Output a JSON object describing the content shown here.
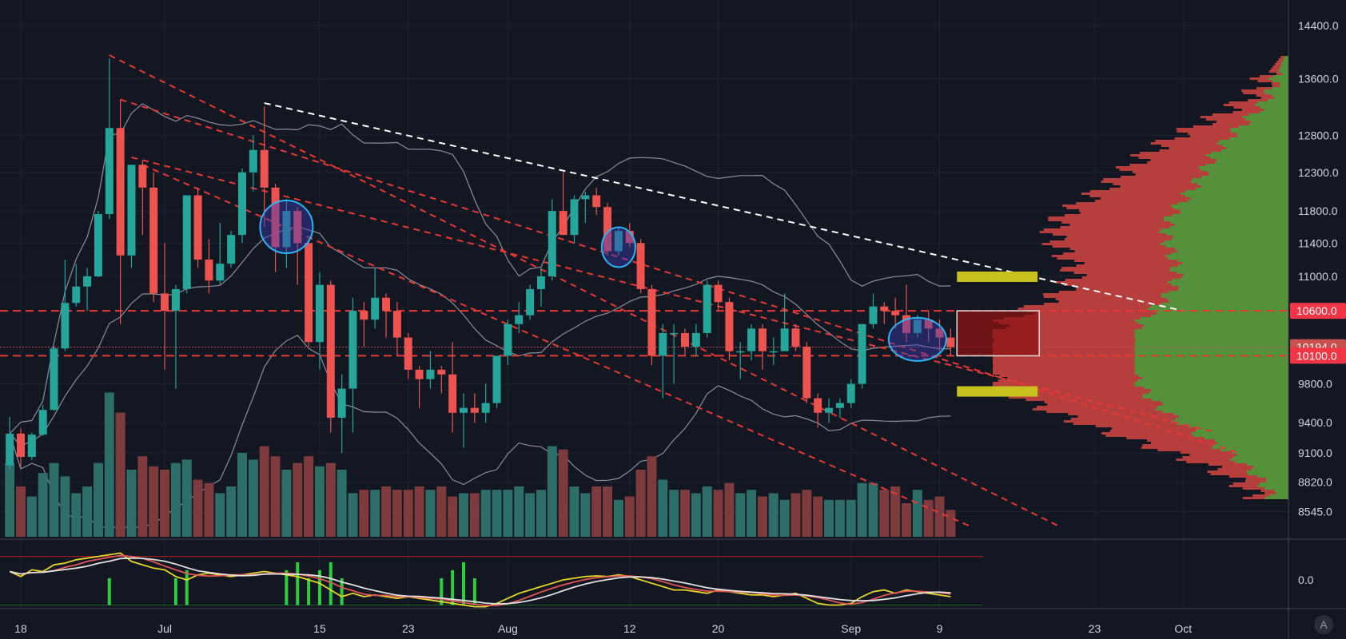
{
  "chart_data": {
    "type": "candlestick",
    "price_axis": {
      "scale": "log",
      "range": [
        8330,
        14700
      ],
      "ticks": [
        "14400.0",
        "13600.0",
        "12800.0",
        "12300.0",
        "11800.0",
        "11400.0",
        "11000.0",
        "9800.0",
        "9400.0",
        "9100.0",
        "8820.0",
        "8545.0"
      ]
    },
    "time_axis": {
      "ticks": [
        {
          "label": "18",
          "date": "2019-06-18"
        },
        {
          "label": "Jul",
          "date": "2019-07-01"
        },
        {
          "label": "15",
          "date": "2019-07-15"
        },
        {
          "label": "23",
          "date": "2019-07-23"
        },
        {
          "label": "Aug",
          "date": "2019-08-01"
        },
        {
          "label": "12",
          "date": "2019-08-12"
        },
        {
          "label": "20",
          "date": "2019-08-20"
        },
        {
          "label": "Sep",
          "date": "2019-09-01"
        },
        {
          "label": "9",
          "date": "2019-09-09"
        },
        {
          "label": "23",
          "date": "2019-09-23"
        },
        {
          "label": "Oct",
          "date": "2019-10-01"
        }
      ]
    },
    "price_badges": [
      {
        "label": "10600.0",
        "price": 10600,
        "color": "#f23645"
      },
      {
        "label": "10194.0",
        "price": 10194,
        "color": "#c8504f"
      },
      {
        "label": "10100.0",
        "price": 10100,
        "color": "#f23645"
      }
    ],
    "oscillator": {
      "tick_label": "0.0"
    },
    "series": [
      {
        "name": "candles",
        "ohlc": [
          [
            "2019-06-17",
            8980,
            9460,
            8940,
            9290
          ],
          [
            "2019-06-18",
            9290,
            9340,
            8960,
            9060
          ],
          [
            "2019-06-19",
            9060,
            9300,
            9030,
            9280
          ],
          [
            "2019-06-20",
            9280,
            9580,
            9270,
            9530
          ],
          [
            "2019-06-21",
            9530,
            10200,
            9520,
            10180
          ],
          [
            "2019-06-22",
            10180,
            11200,
            10150,
            10690
          ],
          [
            "2019-06-23",
            10690,
            11150,
            10650,
            10880
          ],
          [
            "2019-06-24",
            10880,
            11100,
            10600,
            11000
          ],
          [
            "2019-06-25",
            11000,
            11800,
            10990,
            11760
          ],
          [
            "2019-06-26",
            11760,
            13900,
            11700,
            12900
          ],
          [
            "2019-06-27",
            12900,
            13300,
            10450,
            11250
          ],
          [
            "2019-06-28",
            11250,
            12400,
            11100,
            12400
          ],
          [
            "2019-06-29",
            12400,
            12450,
            11500,
            12100
          ],
          [
            "2019-06-30",
            12100,
            12300,
            10700,
            10800
          ],
          [
            "2019-07-01",
            10800,
            11400,
            9950,
            10600
          ],
          [
            "2019-07-02",
            10600,
            10900,
            9750,
            10850
          ],
          [
            "2019-07-03",
            10850,
            12000,
            10800,
            12000
          ],
          [
            "2019-07-04",
            12000,
            12100,
            11100,
            11200
          ],
          [
            "2019-07-05",
            11200,
            11450,
            10800,
            10950
          ],
          [
            "2019-07-06",
            10950,
            11650,
            10900,
            11150
          ],
          [
            "2019-07-07",
            11150,
            11550,
            11100,
            11500
          ],
          [
            "2019-07-08",
            11500,
            12350,
            11400,
            12300
          ],
          [
            "2019-07-09",
            12300,
            12800,
            12050,
            12600
          ],
          [
            "2019-07-10",
            12600,
            13200,
            11600,
            12100
          ],
          [
            "2019-07-11",
            12100,
            12150,
            11050,
            11350
          ],
          [
            "2019-07-12",
            11350,
            11950,
            11100,
            11800
          ],
          [
            "2019-07-13",
            11800,
            11850,
            10900,
            11400
          ],
          [
            "2019-07-14",
            11400,
            11450,
            10200,
            10250
          ],
          [
            "2019-07-15",
            10250,
            11050,
            9950,
            10900
          ],
          [
            "2019-07-16",
            10900,
            10950,
            9300,
            9450
          ],
          [
            "2019-07-17",
            9450,
            9900,
            9100,
            9750
          ],
          [
            "2019-07-18",
            9750,
            10750,
            9300,
            10600
          ],
          [
            "2019-07-19",
            10600,
            10700,
            10200,
            10500
          ],
          [
            "2019-07-20",
            10500,
            11100,
            10400,
            10750
          ],
          [
            "2019-07-21",
            10750,
            10800,
            10300,
            10600
          ],
          [
            "2019-07-22",
            10600,
            10700,
            10100,
            10300
          ],
          [
            "2019-07-23",
            10300,
            10350,
            9850,
            9950
          ],
          [
            "2019-07-24",
            9950,
            9990,
            9550,
            9850
          ],
          [
            "2019-07-25",
            9850,
            10150,
            9750,
            9950
          ],
          [
            "2019-07-26",
            9950,
            9990,
            9700,
            9900
          ],
          [
            "2019-07-27",
            9900,
            10250,
            9300,
            9500
          ],
          [
            "2019-07-28",
            9500,
            9700,
            9150,
            9550
          ],
          [
            "2019-07-29",
            9550,
            9700,
            9400,
            9500
          ],
          [
            "2019-07-30",
            9500,
            9800,
            9400,
            9600
          ],
          [
            "2019-07-31",
            9600,
            10100,
            9550,
            10100
          ],
          [
            "2019-08-01",
            10100,
            10500,
            10000,
            10450
          ],
          [
            "2019-08-02",
            10450,
            10700,
            10350,
            10550
          ],
          [
            "2019-08-03",
            10550,
            10900,
            10500,
            10850
          ],
          [
            "2019-08-04",
            10850,
            11100,
            10650,
            11000
          ],
          [
            "2019-08-05",
            11000,
            11950,
            10950,
            11800
          ],
          [
            "2019-08-06",
            11800,
            12300,
            11500,
            11500
          ],
          [
            "2019-08-07",
            11500,
            12000,
            11400,
            11950
          ],
          [
            "2019-08-08",
            11950,
            12050,
            11650,
            12000
          ],
          [
            "2019-08-09",
            12000,
            12100,
            11750,
            11850
          ],
          [
            "2019-08-10",
            11850,
            11900,
            11250,
            11300
          ],
          [
            "2019-08-11",
            11300,
            11600,
            11250,
            11550
          ],
          [
            "2019-08-12",
            11550,
            11650,
            11350,
            11400
          ],
          [
            "2019-08-13",
            11400,
            11450,
            10800,
            10850
          ],
          [
            "2019-08-14",
            10850,
            10900,
            10000,
            10100
          ],
          [
            "2019-08-15",
            10100,
            10450,
            9650,
            10350
          ],
          [
            "2019-08-16",
            10350,
            10450,
            9800,
            10350
          ],
          [
            "2019-08-17",
            10350,
            10400,
            10100,
            10200
          ],
          [
            "2019-08-18",
            10200,
            10450,
            10100,
            10350
          ],
          [
            "2019-08-19",
            10350,
            10950,
            10300,
            10900
          ],
          [
            "2019-08-20",
            10900,
            10950,
            10600,
            10700
          ],
          [
            "2019-08-21",
            10700,
            10750,
            10050,
            10150
          ],
          [
            "2019-08-22",
            10150,
            10250,
            9850,
            10150
          ],
          [
            "2019-08-23",
            10150,
            10450,
            10050,
            10400
          ],
          [
            "2019-08-24",
            10400,
            10450,
            9950,
            10150
          ],
          [
            "2019-08-25",
            10150,
            10300,
            10000,
            10150
          ],
          [
            "2019-08-26",
            10150,
            10800,
            10150,
            10400
          ],
          [
            "2019-08-27",
            10400,
            10450,
            10150,
            10200
          ],
          [
            "2019-08-28",
            10200,
            10250,
            9600,
            9650
          ],
          [
            "2019-08-29",
            9650,
            9700,
            9350,
            9500
          ],
          [
            "2019-08-30",
            9500,
            9650,
            9400,
            9550
          ],
          [
            "2019-08-31",
            9550,
            9650,
            9450,
            9600
          ],
          [
            "2019-09-01",
            9600,
            9850,
            9550,
            9800
          ],
          [
            "2019-09-02",
            9800,
            10450,
            9750,
            10450
          ],
          [
            "2019-09-03",
            10450,
            10800,
            10400,
            10650
          ],
          [
            "2019-09-04",
            10650,
            10700,
            10450,
            10600
          ],
          [
            "2019-09-05",
            10600,
            10750,
            10400,
            10550
          ],
          [
            "2019-09-06",
            10550,
            10900,
            10250,
            10350
          ],
          [
            "2019-09-07",
            10350,
            10550,
            10300,
            10500
          ],
          [
            "2019-09-08",
            10500,
            10600,
            10250,
            10400
          ],
          [
            "2019-09-09",
            10400,
            10500,
            10150,
            10300
          ],
          [
            "2019-09-10",
            10300,
            10400,
            10100,
            10194
          ]
        ]
      },
      {
        "name": "volume",
        "values": [
          22,
          15,
          12,
          19,
          22,
          18,
          13,
          15,
          22,
          43,
          37,
          20,
          24,
          21,
          20,
          22,
          23,
          17,
          16,
          13,
          15,
          25,
          23,
          27,
          24,
          20,
          22,
          24,
          21,
          22,
          20,
          13,
          14,
          14,
          15,
          14,
          14,
          15,
          14,
          15,
          12,
          13,
          13,
          14,
          14,
          14,
          15,
          13,
          14,
          27,
          26,
          15,
          13,
          15,
          15,
          11,
          12,
          20,
          24,
          17,
          14,
          14,
          13,
          15,
          14,
          16,
          13,
          14,
          12,
          13,
          11,
          13,
          14,
          12,
          11,
          11,
          11,
          16,
          16,
          14,
          15,
          10,
          14,
          11,
          12,
          8
        ]
      },
      {
        "name": "oscillator",
        "values": [
          0.25,
          0.1,
          0.3,
          0.25,
          0.45,
          0.5,
          0.6,
          0.65,
          0.7,
          0.75,
          0.8,
          0.55,
          0.45,
          0.35,
          0.3,
          0.1,
          0.0,
          0.15,
          0.2,
          0.15,
          0.1,
          0.15,
          0.2,
          0.25,
          0.2,
          0.15,
          0.1,
          0.0,
          -0.1,
          -0.3,
          -0.5,
          -0.4,
          -0.5,
          -0.45,
          -0.5,
          -0.55,
          -0.5,
          -0.55,
          -0.6,
          -0.65,
          -0.7,
          -0.75,
          -0.8,
          -0.8,
          -0.7,
          -0.55,
          -0.4,
          -0.3,
          -0.2,
          -0.1,
          0.0,
          0.05,
          0.1,
          0.12,
          0.1,
          0.15,
          0.1,
          0.0,
          -0.1,
          -0.2,
          -0.3,
          -0.3,
          -0.35,
          -0.4,
          -0.3,
          -0.35,
          -0.4,
          -0.45,
          -0.45,
          -0.5,
          -0.45,
          -0.4,
          -0.55,
          -0.7,
          -0.75,
          -0.75,
          -0.7,
          -0.5,
          -0.35,
          -0.3,
          -0.4,
          -0.3,
          -0.35,
          -0.4,
          -0.45,
          -0.5
        ]
      }
    ]
  },
  "footer": {
    "settings_badge": "A"
  }
}
